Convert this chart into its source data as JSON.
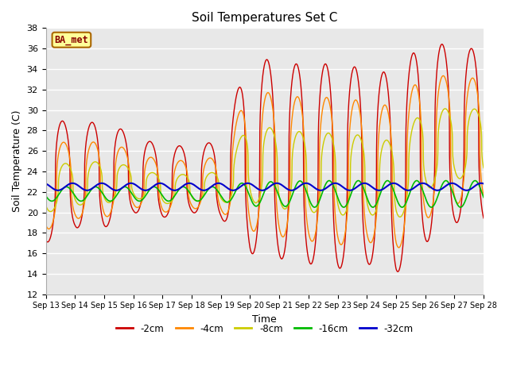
{
  "title": "Soil Temperatures Set C",
  "xlabel": "Time",
  "ylabel": "Soil Temperature (C)",
  "ylim": [
    12,
    38
  ],
  "yticks": [
    12,
    14,
    16,
    18,
    20,
    22,
    24,
    26,
    28,
    30,
    32,
    34,
    36,
    38
  ],
  "legend_label": "BA_met",
  "series_labels": [
    "-2cm",
    "-4cm",
    "-8cm",
    "-16cm",
    "-32cm"
  ],
  "series_colors": [
    "#cc0000",
    "#ff8800",
    "#cccc00",
    "#00bb00",
    "#0000cc"
  ],
  "fig_bg_color": "#ffffff",
  "plot_bg_color": "#e8e8e8",
  "grid_color": "#ffffff",
  "n_days": 15,
  "start_day": 13,
  "base_temp": 22.0
}
